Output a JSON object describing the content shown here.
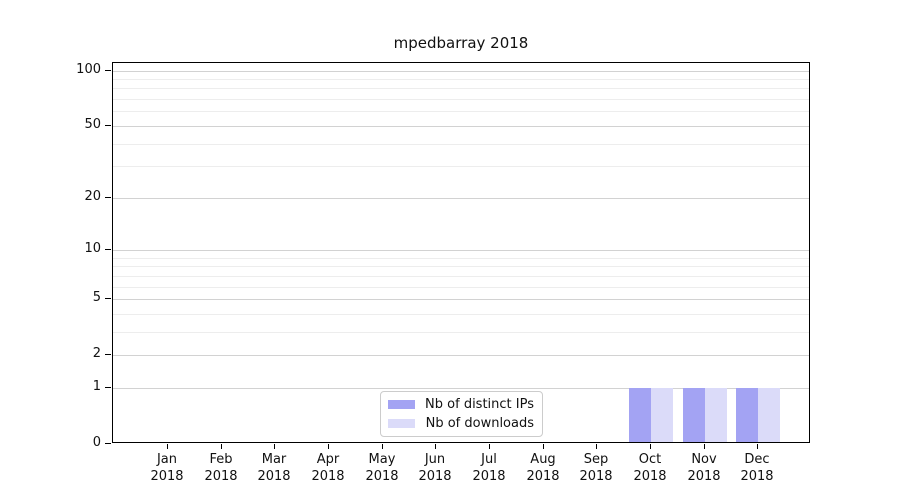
{
  "chart_data": {
    "type": "bar",
    "title": "mpedbarray 2018",
    "x_year": "2018",
    "categories": [
      "Jan",
      "Feb",
      "Mar",
      "Apr",
      "May",
      "Jun",
      "Jul",
      "Aug",
      "Sep",
      "Oct",
      "Nov",
      "Dec"
    ],
    "series": [
      {
        "name": "Nb of distinct IPs",
        "color": "#a3a3f3",
        "values": [
          0,
          0,
          0,
          0,
          0,
          0,
          0,
          0,
          0,
          1,
          1,
          1
        ]
      },
      {
        "name": "Nb of downloads",
        "color": "#dbdbf9",
        "values": [
          0,
          0,
          0,
          0,
          0,
          0,
          0,
          0,
          0,
          1,
          1,
          1
        ]
      }
    ],
    "yscale": "log1p",
    "ylim": [
      0,
      110
    ],
    "y_major_ticks": [
      0,
      1,
      2,
      5,
      10,
      20,
      50,
      100
    ],
    "y_minor_gridlines": [
      3,
      4,
      6,
      7,
      8,
      9,
      30,
      40,
      60,
      70,
      80,
      90
    ],
    "grid": {
      "major_color": "#d2d2d2",
      "minor_color": "#ededed"
    },
    "legend": {
      "position": "lower center",
      "entries": [
        "Nb of distinct IPs",
        "Nb of downloads"
      ]
    }
  }
}
